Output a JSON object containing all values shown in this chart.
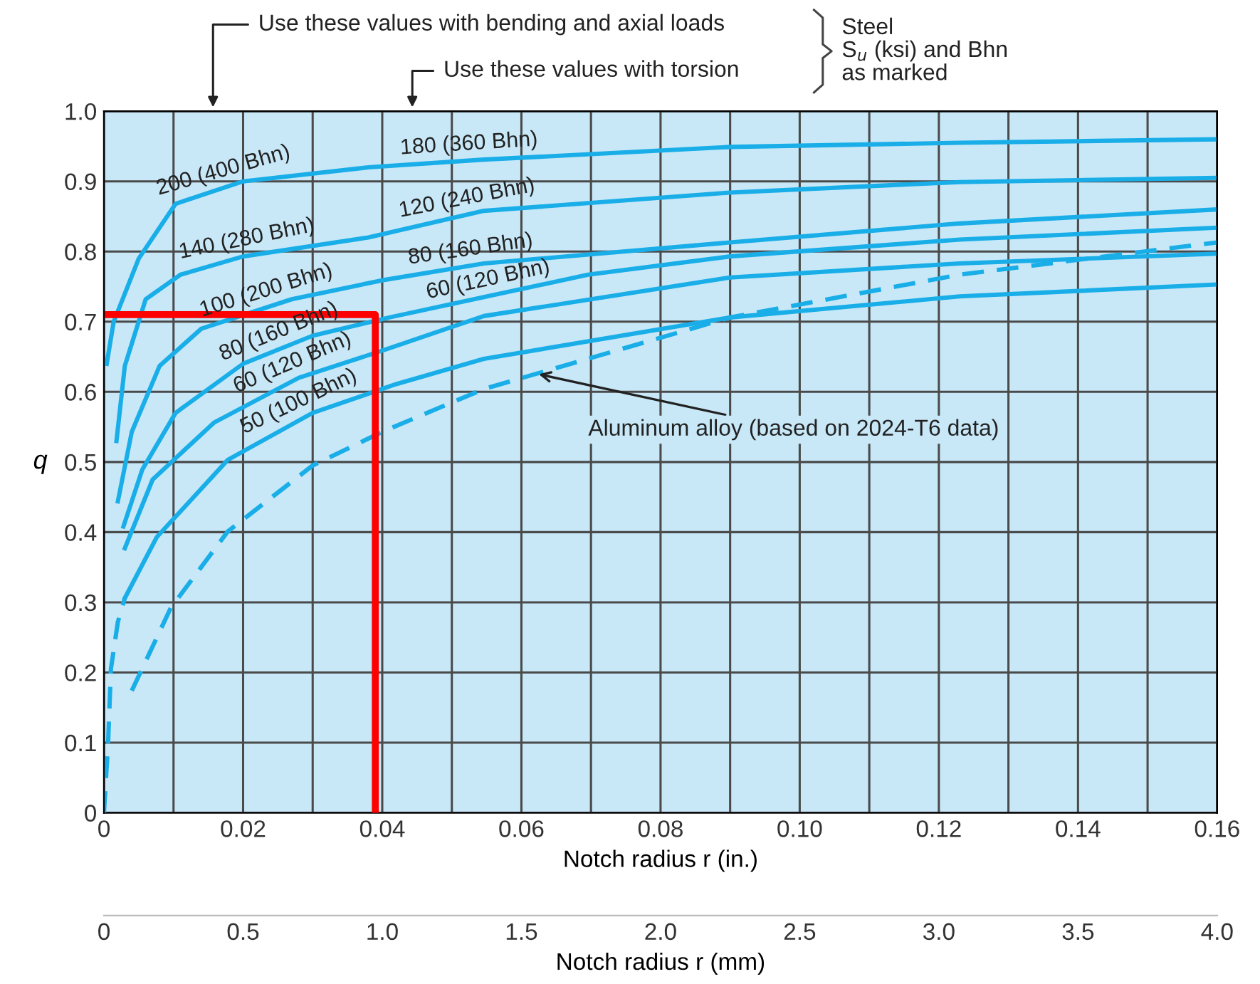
{
  "chart_data": {
    "type": "line",
    "xlabel": "Notch radius r (in.)",
    "ylabel": "q",
    "x2label": "Notch radius r (mm)",
    "xlim": [
      0,
      0.16
    ],
    "ylim": [
      0,
      1
    ],
    "xticks": [
      0,
      {
        "value": 0.01,
        "label": null
      },
      0.02,
      {
        "value": 0.03,
        "label": null
      },
      0.04,
      {
        "value": 0.05,
        "label": null
      },
      0.06,
      {
        "value": 0.07,
        "label": null
      },
      0.08,
      {
        "value": 0.09,
        "label": null
      },
      {
        "value": 0.1,
        "label": "0.10"
      },
      {
        "value": 0.11,
        "label": null
      },
      0.12,
      {
        "value": 0.13,
        "label": null
      },
      0.14,
      {
        "value": 0.15,
        "label": null
      },
      0.16
    ],
    "yticks": [
      0,
      0.1,
      0.2,
      0.3,
      0.4,
      0.5,
      0.6,
      0.7,
      0.8,
      0.9,
      {
        "value": 1,
        "label": "1.0"
      }
    ],
    "x2lim": [
      0,
      4
    ],
    "x2ticks": [
      0,
      0.5,
      {
        "value": 1,
        "label": "1.0"
      },
      1.5,
      {
        "value": 2,
        "label": "2.0"
      },
      2.5,
      {
        "value": 3,
        "label": "3.0"
      },
      3.5,
      {
        "value": 4,
        "label": "4.0"
      }
    ],
    "grid": true,
    "marker": "none",
    "series": [
      {
        "color": "#1aaee8",
        "line_style": "solid",
        "x": [
          0.0004,
          0.0014,
          0.005,
          0.0103,
          0.02,
          0.038,
          0.0546,
          0.09,
          0.123,
          0.16
        ],
        "values": [
          0.64,
          0.7,
          0.79,
          0.868,
          0.9,
          0.92,
          0.931,
          0.949,
          0.955,
          0.96
        ]
      },
      {
        "color": "#1aaee8",
        "line_style": "solid",
        "x": [
          0.0018,
          0.003,
          0.006,
          0.011,
          0.02,
          0.038,
          0.0546,
          0.09,
          0.123,
          0.16
        ],
        "values": [
          0.53,
          0.637,
          0.732,
          0.767,
          0.793,
          0.82,
          0.858,
          0.884,
          0.899,
          0.905
        ]
      },
      {
        "color": "#1aaee8",
        "line_style": "solid",
        "x": [
          0.002,
          0.004,
          0.008,
          0.014,
          0.027,
          0.04,
          0.0546,
          0.09,
          0.123,
          0.16
        ],
        "values": [
          0.444,
          0.543,
          0.637,
          0.69,
          0.732,
          0.759,
          0.783,
          0.813,
          0.84,
          0.86
        ]
      },
      {
        "color": "#1aaee8",
        "line_style": "solid",
        "x": [
          0.0028,
          0.0055,
          0.0103,
          0.02,
          0.03,
          0.041,
          0.0546,
          0.0696,
          0.09,
          0.123,
          0.16
        ],
        "values": [
          0.408,
          0.489,
          0.57,
          0.64,
          0.68,
          0.706,
          0.735,
          0.767,
          0.793,
          0.817,
          0.834
        ]
      },
      {
        "color": "#1aaee8",
        "line_style": "solid",
        "x": [
          0.003,
          0.007,
          0.0158,
          0.028,
          0.0407,
          0.0546,
          0.09,
          0.123,
          0.16
        ],
        "values": [
          0.377,
          0.475,
          0.556,
          0.62,
          0.661,
          0.708,
          0.763,
          0.783,
          0.797
        ]
      },
      {
        "color": "#1aaee8",
        "line_style": "solid",
        "x": [
          0.003,
          0.0076,
          0.0178,
          0.03,
          0.042,
          0.0546,
          0.09,
          0.123,
          0.16
        ],
        "values": [
          0.306,
          0.393,
          0.503,
          0.57,
          0.611,
          0.647,
          0.706,
          0.736,
          0.753
        ]
      },
      {
        "color": "#1aaee8",
        "line_style": "dashed",
        "x": [
          0,
          0.0006,
          0.001,
          0.002,
          0.003
        ],
        "values": [
          0,
          0.1,
          0.205,
          0.272,
          0.306
        ]
      },
      {
        "color": "#1aaee8",
        "line_style": "dashed",
        "x": [
          0.004,
          0.0096,
          0.0178,
          0.03,
          0.04,
          0.0546,
          0.09,
          0.123,
          0.16
        ],
        "values": [
          0.174,
          0.292,
          0.401,
          0.495,
          0.543,
          0.604,
          0.706,
          0.767,
          0.813
        ]
      },
      {
        "color": "#ff0000",
        "line_style": "solid",
        "x": [
          0,
          0.039,
          0.039
        ],
        "values": [
          0.71,
          0.71,
          0
        ]
      }
    ],
    "annotations": [
      "Use these values with bending and axial loads",
      "Use these values with torsion",
      "Steel\nS$_{u}$ (ksi) and Bhn\nas marked",
      {
        "text": "200 (400 Bhn)",
        "x": 0.0178,
        "y": 0.893
      },
      {
        "text": "140 (280 Bhn)",
        "x": 0.021,
        "y": 0.795
      },
      {
        "text": "100 (200 Bhn)",
        "x": 0.024,
        "y": 0.722
      },
      {
        "text": "80 (160 Bhn)",
        "x": 0.026,
        "y": 0.664
      },
      {
        "text": "60 (120 Bhn)",
        "x": 0.028,
        "y": 0.62
      },
      {
        "text": "50 (100 Bhn)",
        "x": 0.029,
        "y": 0.565
      },
      {
        "text": "180 (360 Bhn)",
        "x": 0.0526,
        "y": 0.93
      },
      {
        "text": "120 (240 Bhn)",
        "x": 0.0526,
        "y": 0.853
      },
      {
        "text": "80 (160 Bhn)",
        "x": 0.053,
        "y": 0.78
      },
      {
        "text": "60 (120 Bhn)",
        "x": 0.0557,
        "y": 0.737
      },
      {
        "text": "Aluminum alloy (based on 2024-T6 data)",
        "x": 0.0625,
        "y": 0.625
      }
    ]
  }
}
